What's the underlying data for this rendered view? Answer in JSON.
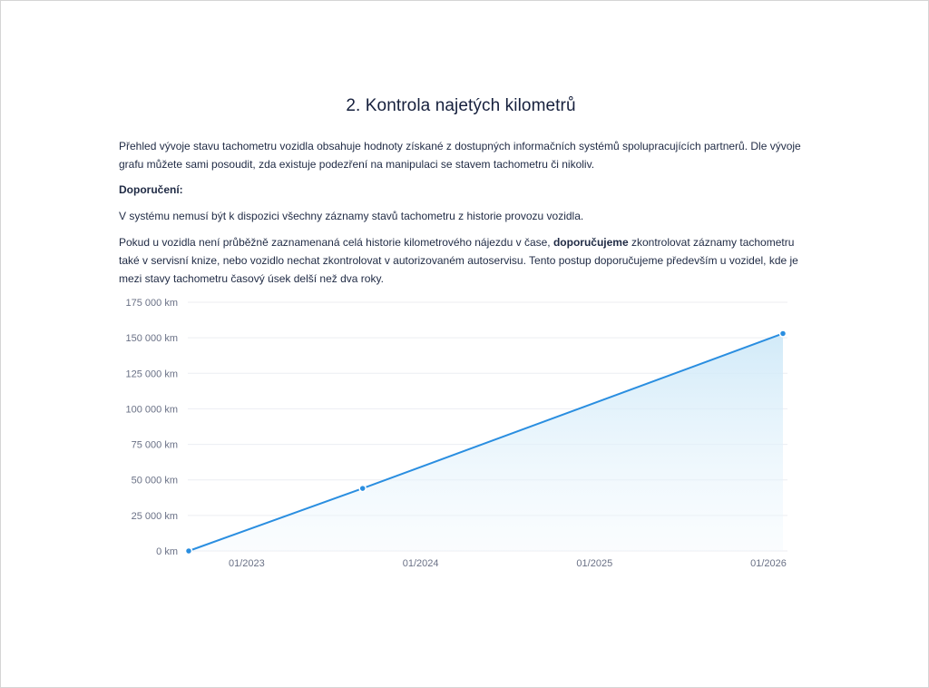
{
  "title": "2. Kontrola najetých kilometrů",
  "intro": "Přehled vývoje stavu tachometru vozidla obsahuje hodnoty získané z dostupných informačních systémů spolupracujících partnerů. Dle vývoje grafu můžete sami posoudit, zda existuje podezření na manipulaci se stavem tachometru či nikoliv.",
  "recommendation_heading": "Doporučení:",
  "note": "V systému nemusí být k dispozici všechny záznamy stavů tachometru z historie provozu vozidla.",
  "paragraph": {
    "before": "Pokud u vozidla není průběžně zaznamenaná celá historie kilometrového nájezdu v čase, ",
    "bold": "doporučujeme",
    "after": " zkontrolovat záznamy tachometru také v servisní knize, nebo vozidlo nechat zkontrolovat v autorizovaném autoservisu. Tento postup doporučujeme především u vozidel, kde je mezi stavy tachometru časový úsek delší než dva roky."
  },
  "chart_data": {
    "type": "area",
    "x": [
      "2022-09",
      "2023-09",
      "2026-02"
    ],
    "values": [
      0,
      44000,
      153000
    ],
    "unit": "km",
    "ylim": [
      0,
      175000
    ],
    "yticks": [
      0,
      25000,
      50000,
      75000,
      100000,
      125000,
      150000,
      175000
    ],
    "ytick_labels": [
      "0 km",
      "25 000 km",
      "50 000 km",
      "75 000 km",
      "100 000 km",
      "125 000 km",
      "150 000 km",
      "175 000 km"
    ],
    "xticks": [
      "2023-01",
      "2024-01",
      "2025-01",
      "2026-01"
    ],
    "xtick_labels": [
      "01/2023",
      "01/2024",
      "01/2025",
      "01/2026"
    ],
    "grid": true,
    "legend": "none",
    "colors": {
      "line": "#2a8ee0",
      "fill": "#d4ecf8",
      "grid": "#eceef2"
    }
  }
}
